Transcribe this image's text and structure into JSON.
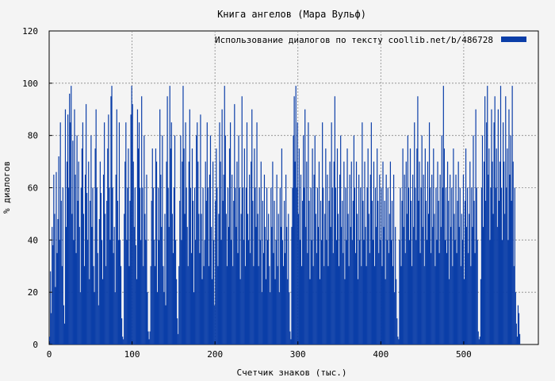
{
  "chart_data": {
    "type": "bar",
    "title": "Книга ангелов (Мара Вульф)",
    "xlabel": "Счетчик знаков (тыс.)",
    "ylabel": "% диалогов",
    "xlim": [
      0,
      590
    ],
    "ylim": [
      0,
      120
    ],
    "x_ticks": [
      0,
      100,
      200,
      300,
      400,
      500
    ],
    "y_ticks": [
      0,
      20,
      40,
      60,
      80,
      100,
      120
    ],
    "x_tick_labels": [
      "0",
      "100",
      "200",
      "300",
      "400",
      "500"
    ],
    "y_tick_labels": [
      "0",
      "20",
      "40",
      "60",
      "80",
      "100",
      "120"
    ],
    "grid": true,
    "legend_position": "top-right",
    "series": [
      {
        "name": "Использование диалогов по тексту  coollib.net/b/486728",
        "color": "#0b3ea8",
        "bin_width": 1,
        "x_start": 0,
        "values": [
          3,
          28,
          12,
          45,
          38,
          65,
          50,
          22,
          66,
          35,
          48,
          72,
          40,
          85,
          55,
          30,
          60,
          15,
          8,
          90,
          45,
          70,
          88,
          60,
          96,
          85,
          99,
          50,
          78,
          40,
          90,
          65,
          35,
          80,
          55,
          70,
          45,
          20,
          60,
          75,
          85,
          50,
          30,
          65,
          92,
          58,
          40,
          70,
          25,
          55,
          80,
          45,
          60,
          30,
          20,
          75,
          90,
          60,
          35,
          15,
          48,
          70,
          58,
          40,
          25,
          65,
          85,
          50,
          30,
          55,
          75,
          88,
          60,
          40,
          95,
          99,
          60,
          35,
          45,
          20,
          65,
          90,
          55,
          40,
          85,
          40,
          30,
          10,
          3,
          2,
          50,
          70,
          85,
          40,
          60,
          75,
          30,
          55,
          88,
          99,
          92,
          70,
          45,
          60,
          38,
          25,
          90,
          75,
          85,
          60,
          40,
          95,
          60,
          30,
          80,
          50,
          40,
          65,
          20,
          5,
          2,
          5,
          30,
          55,
          75,
          60,
          40,
          30,
          75,
          70,
          20,
          60,
          40,
          90,
          65,
          45,
          80,
          30,
          20,
          50,
          15,
          70,
          95,
          60,
          45,
          99,
          75,
          85,
          50,
          35,
          60,
          80,
          40,
          25,
          10,
          4,
          30,
          55,
          80,
          40,
          70,
          99,
          75,
          50,
          85,
          60,
          45,
          30,
          70,
          90,
          60,
          35,
          75,
          55,
          20,
          60,
          40,
          80,
          85,
          70,
          50,
          35,
          88,
          50,
          25,
          60,
          30,
          40,
          70,
          55,
          85,
          60,
          30,
          65,
          80,
          45,
          25,
          70,
          40,
          15,
          55,
          75,
          60,
          30,
          50,
          85,
          70,
          40,
          90,
          55,
          65,
          99,
          80,
          50,
          30,
          60,
          45,
          75,
          85,
          40,
          65,
          30,
          55,
          92,
          60,
          45,
          70,
          35,
          80,
          60,
          25,
          50,
          95,
          60,
          40,
          75,
          30,
          60,
          85,
          50,
          40,
          65,
          35,
          70,
          90,
          55,
          30,
          75,
          60,
          45,
          85,
          50,
          30,
          60,
          40,
          70,
          20,
          55,
          35,
          65,
          45,
          25,
          60,
          40,
          50,
          30,
          20,
          60,
          45,
          70,
          35,
          55,
          25,
          40,
          65,
          30,
          50,
          20,
          60,
          45,
          75,
          40,
          30,
          55,
          35,
          65,
          45,
          25,
          50,
          20,
          5,
          2,
          45,
          60,
          80,
          95,
          70,
          99,
          60,
          85,
          50,
          75,
          40,
          65,
          30,
          55,
          80,
          60,
          90,
          45,
          70,
          35,
          85,
          55,
          25,
          60,
          40,
          75,
          30,
          65,
          80,
          50,
          35,
          60,
          45,
          70,
          25,
          55,
          40,
          85,
          60,
          30,
          50,
          75,
          40,
          65,
          30,
          55,
          70,
          45,
          85,
          60,
          35,
          70,
          95,
          60,
          40,
          75,
          50,
          30,
          65,
          80,
          45,
          55,
          35,
          70,
          25,
          60,
          40,
          75,
          50,
          30,
          65,
          45,
          70,
          40,
          55,
          80,
          60,
          35,
          70,
          50,
          25,
          65,
          40,
          60,
          30,
          85,
          55,
          40,
          70,
          45,
          30,
          60,
          75,
          50,
          35,
          65,
          85,
          55,
          40,
          70,
          30,
          60,
          45,
          75,
          55,
          35,
          65,
          40,
          60,
          30,
          70,
          45,
          55,
          25,
          65,
          40,
          60,
          35,
          50,
          70,
          40,
          55,
          30,
          65,
          20,
          45,
          25,
          10,
          3,
          2,
          40,
          60,
          30,
          55,
          75,
          45,
          65,
          35,
          70,
          50,
          80,
          60,
          40,
          75,
          55,
          30,
          65,
          45,
          85,
          60,
          40,
          75,
          95,
          55,
          70,
          35,
          60,
          80,
          45,
          65,
          30,
          75,
          55,
          40,
          70,
          50,
          85,
          60,
          35,
          65,
          45,
          75,
          50,
          30,
          60,
          40,
          70,
          55,
          35,
          65,
          45,
          80,
          60,
          99,
          75,
          40,
          60,
          35,
          70,
          55,
          25,
          65,
          45,
          60,
          30,
          75,
          50,
          40,
          65,
          35,
          55,
          70,
          45,
          60,
          30,
          50,
          40,
          65,
          25,
          55,
          75,
          45,
          60,
          35,
          50,
          70,
          30,
          60,
          45,
          80,
          55,
          35,
          90,
          60,
          40,
          5,
          2,
          3,
          25,
          60,
          80,
          45,
          70,
          95,
          55,
          85,
          99,
          65,
          75,
          40,
          60,
          90,
          70,
          50,
          85,
          95,
          60,
          75,
          45,
          90,
          55,
          70,
          99,
          60,
          40,
          85,
          70,
          50,
          95,
          60,
          75,
          40,
          90,
          65,
          80,
          55,
          99,
          70,
          30,
          60,
          20,
          8,
          3,
          15,
          12,
          4
        ]
      }
    ]
  }
}
